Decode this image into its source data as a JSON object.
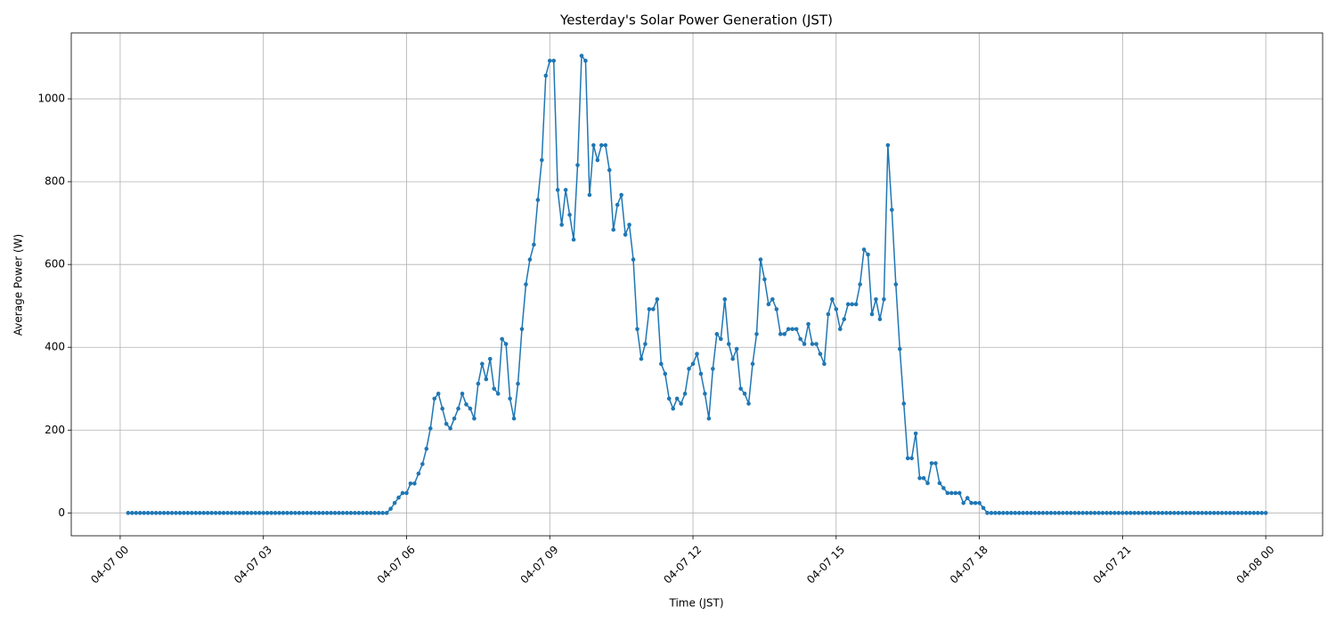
{
  "chart_data": {
    "type": "line",
    "title": "Yesterday's Solar Power Generation (JST)",
    "x_label": "Time (JST)",
    "y_label": "Average Power (W)",
    "color": "#1f77b4",
    "grid": true,
    "xlim": [
      -61.5,
      1511.5
    ],
    "ylim": [
      -55.2,
      1159.2
    ],
    "yticks": [
      0,
      200,
      400,
      600,
      800,
      1000
    ],
    "xticks": [
      {
        "value": 0,
        "label": "04-07 00"
      },
      {
        "value": 180,
        "label": "04-07 03"
      },
      {
        "value": 360,
        "label": "04-07 06"
      },
      {
        "value": 540,
        "label": "04-07 09"
      },
      {
        "value": 720,
        "label": "04-07 12"
      },
      {
        "value": 900,
        "label": "04-07 15"
      },
      {
        "value": 1080,
        "label": "04-07 18"
      },
      {
        "value": 1260,
        "label": "04-07 21"
      },
      {
        "value": 1440,
        "label": "04-08 00"
      }
    ],
    "x": [
      10,
      15,
      20,
      25,
      30,
      35,
      40,
      45,
      50,
      55,
      60,
      65,
      70,
      75,
      80,
      85,
      90,
      95,
      100,
      105,
      110,
      115,
      120,
      125,
      130,
      135,
      140,
      145,
      150,
      155,
      160,
      165,
      170,
      175,
      180,
      185,
      190,
      195,
      200,
      205,
      210,
      215,
      220,
      225,
      230,
      235,
      240,
      245,
      250,
      255,
      260,
      265,
      270,
      275,
      280,
      285,
      290,
      295,
      300,
      305,
      310,
      315,
      320,
      325,
      330,
      335,
      340,
      345,
      350,
      355,
      360,
      365,
      370,
      375,
      380,
      385,
      390,
      395,
      400,
      405,
      410,
      415,
      420,
      425,
      430,
      435,
      440,
      445,
      450,
      455,
      460,
      465,
      470,
      475,
      480,
      485,
      490,
      495,
      500,
      505,
      510,
      515,
      520,
      525,
      530,
      535,
      540,
      545,
      550,
      555,
      560,
      565,
      570,
      575,
      580,
      585,
      590,
      595,
      600,
      605,
      610,
      615,
      620,
      625,
      630,
      635,
      640,
      645,
      650,
      655,
      660,
      665,
      670,
      675,
      680,
      685,
      690,
      695,
      700,
      705,
      710,
      715,
      720,
      725,
      730,
      735,
      740,
      745,
      750,
      755,
      760,
      765,
      770,
      775,
      780,
      785,
      790,
      795,
      800,
      805,
      810,
      815,
      820,
      825,
      830,
      835,
      840,
      845,
      850,
      855,
      860,
      865,
      870,
      875,
      880,
      885,
      890,
      895,
      900,
      905,
      910,
      915,
      920,
      925,
      930,
      935,
      940,
      945,
      950,
      955,
      960,
      965,
      970,
      975,
      980,
      985,
      990,
      995,
      1000,
      1005,
      1010,
      1015,
      1020,
      1025,
      1030,
      1035,
      1040,
      1045,
      1050,
      1055,
      1060,
      1065,
      1070,
      1075,
      1080,
      1085,
      1090,
      1095,
      1100,
      1105,
      1110,
      1115,
      1120,
      1125,
      1130,
      1135,
      1140,
      1145,
      1150,
      1155,
      1160,
      1165,
      1170,
      1175,
      1180,
      1185,
      1190,
      1195,
      1200,
      1205,
      1210,
      1215,
      1220,
      1225,
      1230,
      1235,
      1240,
      1245,
      1250,
      1255,
      1260,
      1265,
      1270,
      1275,
      1280,
      1285,
      1290,
      1295,
      1300,
      1305,
      1310,
      1315,
      1320,
      1325,
      1330,
      1335,
      1340,
      1345,
      1350,
      1355,
      1360,
      1365,
      1370,
      1375,
      1380,
      1385,
      1390,
      1395,
      1400,
      1405,
      1410,
      1415,
      1420,
      1425,
      1430,
      1435,
      1440
    ],
    "values": [
      0,
      0,
      0,
      0,
      0,
      0,
      0,
      0,
      0,
      0,
      0,
      0,
      0,
      0,
      0,
      0,
      0,
      0,
      0,
      0,
      0,
      0,
      0,
      0,
      0,
      0,
      0,
      0,
      0,
      0,
      0,
      0,
      0,
      0,
      0,
      0,
      0,
      0,
      0,
      0,
      0,
      0,
      0,
      0,
      0,
      0,
      0,
      0,
      0,
      0,
      0,
      0,
      0,
      0,
      0,
      0,
      0,
      0,
      0,
      0,
      0,
      0,
      0,
      0,
      0,
      0,
      10,
      24,
      37,
      48,
      48,
      71,
      71,
      95,
      118,
      155,
      204,
      276,
      288,
      252,
      215,
      204,
      228,
      252,
      288,
      262,
      252,
      228,
      312,
      360,
      323,
      372,
      300,
      288,
      420,
      408,
      276,
      228,
      312,
      444,
      552,
      612,
      648,
      756,
      852,
      1056,
      1092,
      1092,
      780,
      696,
      780,
      720,
      660,
      840,
      1104,
      1092,
      768,
      888,
      852,
      888,
      888,
      828,
      684,
      744,
      768,
      672,
      696,
      612,
      444,
      372,
      408,
      492,
      492,
      516,
      360,
      336,
      276,
      252,
      276,
      264,
      288,
      348,
      360,
      384,
      336,
      288,
      228,
      348,
      432,
      420,
      516,
      408,
      372,
      396,
      300,
      288,
      264,
      360,
      432,
      612,
      564,
      504,
      516,
      492,
      432,
      432,
      444,
      444,
      444,
      420,
      408,
      456,
      408,
      408,
      384,
      360,
      480,
      516,
      492,
      444,
      468,
      504,
      504,
      504,
      552,
      636,
      624,
      480,
      516,
      468,
      516,
      888,
      732,
      552,
      396,
      264,
      132,
      132,
      192,
      84,
      84,
      72,
      120,
      120,
      72,
      60,
      48,
      48,
      48,
      48,
      24,
      36,
      24,
      24,
      24,
      12,
      0,
      0,
      0,
      0,
      0,
      0,
      0,
      0,
      0,
      0,
      0,
      0,
      0,
      0,
      0,
      0,
      0,
      0,
      0,
      0,
      0,
      0,
      0,
      0,
      0,
      0,
      0,
      0,
      0,
      0,
      0,
      0,
      0,
      0,
      0,
      0,
      0,
      0,
      0,
      0,
      0,
      0,
      0,
      0,
      0,
      0,
      0,
      0,
      0,
      0,
      0,
      0,
      0,
      0,
      0,
      0,
      0,
      0,
      0,
      0,
      0,
      0,
      0,
      0,
      0,
      0,
      0,
      0,
      0,
      0,
      0
    ]
  }
}
